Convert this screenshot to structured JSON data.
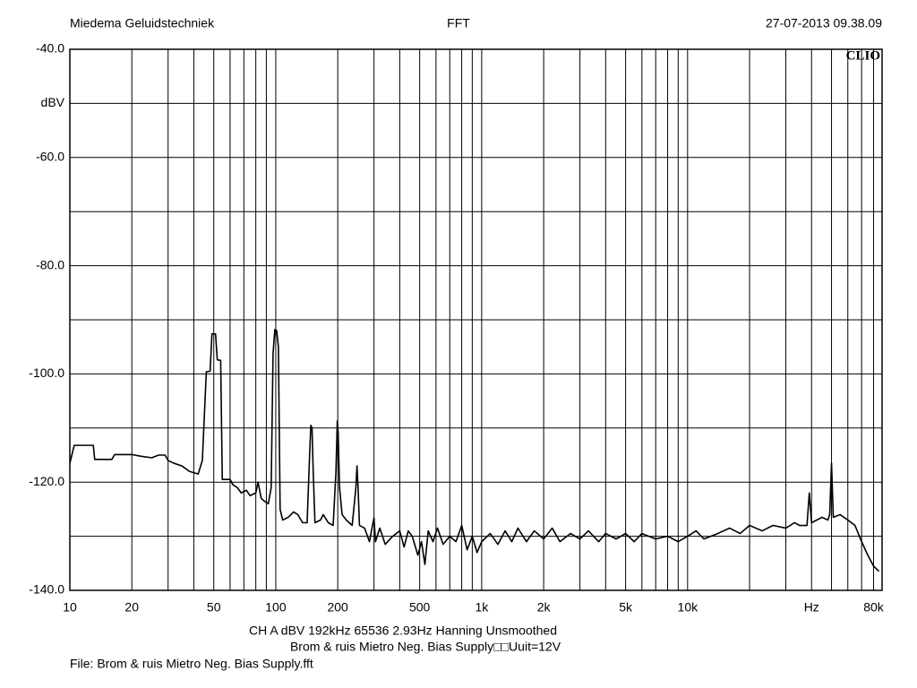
{
  "chart_data": {
    "type": "line",
    "header_left": "Miedema Geluidstechniek",
    "title": "FFT",
    "header_right": "27-07-2013 09.38.09",
    "logo": "CLIO",
    "settings_line": "CH A   dBV   192kHz   65536   2.93Hz   Hanning   Unsmoothed",
    "subtitle": "Brom & ruis Mietro Neg. Bias Supply□□Uuit=12V",
    "file_line": "File: Brom & ruis Mietro Neg. Bias Supply.fft",
    "xscale": "log",
    "xlim": [
      10,
      88000
    ],
    "ylim": [
      -140,
      -40
    ],
    "yticks": [
      {
        "value": -40,
        "label": "-40.0"
      },
      {
        "value": -50,
        "label": "dBV"
      },
      {
        "value": -60,
        "label": "-60.0"
      },
      {
        "value": -80,
        "label": "-80.0"
      },
      {
        "value": -100,
        "label": "-100.0"
      },
      {
        "value": -120,
        "label": "-120.0"
      },
      {
        "value": -140,
        "label": "-140.0"
      }
    ],
    "ygrid": [
      -40,
      -50,
      -60,
      -70,
      -80,
      -90,
      -100,
      -110,
      -120,
      -130,
      -140
    ],
    "xticks": [
      10,
      20,
      50,
      100,
      200,
      500,
      {
        "value": 1000,
        "label": "1k"
      },
      {
        "value": 2000,
        "label": "2k"
      },
      {
        "value": 5000,
        "label": "5k"
      },
      {
        "value": 10000,
        "label": "10k"
      },
      {
        "value": 40000,
        "label": "Hz"
      },
      {
        "value": 80000,
        "label": "80k"
      }
    ],
    "xgrid": [
      10,
      20,
      30,
      40,
      50,
      60,
      70,
      80,
      90,
      100,
      200,
      300,
      400,
      500,
      600,
      700,
      800,
      900,
      1000,
      2000,
      3000,
      4000,
      5000,
      6000,
      7000,
      8000,
      9000,
      10000,
      20000,
      30000,
      40000,
      50000,
      60000,
      70000,
      80000
    ],
    "color": "#000000",
    "x": [
      10,
      10.5,
      13,
      13.2,
      16,
      16.5,
      20,
      22,
      25,
      27,
      29,
      30,
      32,
      35,
      38,
      42,
      44,
      46,
      48,
      49,
      51,
      52,
      54,
      55,
      60,
      62,
      65,
      68,
      72,
      75,
      80,
      82,
      85,
      88,
      92,
      95,
      97,
      99,
      101,
      103,
      105,
      108,
      115,
      122,
      128,
      135,
      142,
      146,
      148,
      150,
      152,
      155,
      165,
      170,
      180,
      190,
      196,
      199,
      201,
      204,
      210,
      220,
      235,
      245,
      248,
      251,
      255,
      270,
      285,
      295,
      300,
      305,
      320,
      340,
      370,
      400,
      420,
      440,
      460,
      490,
      510,
      530,
      550,
      580,
      610,
      650,
      700,
      750,
      800,
      850,
      900,
      950,
      1000,
      1100,
      1200,
      1300,
      1400,
      1500,
      1650,
      1800,
      2000,
      2200,
      2400,
      2700,
      3000,
      3300,
      3700,
      4000,
      4500,
      5000,
      5500,
      6000,
      7000,
      8000,
      9000,
      10000,
      11000,
      12000,
      14000,
      16000,
      18000,
      20000,
      23000,
      26000,
      30000,
      33000,
      35000,
      38000,
      39000,
      40000,
      45000,
      48000,
      49000,
      50000,
      51000,
      55000,
      60000,
      65000,
      70000,
      75000,
      80000,
      85000
    ],
    "values": [
      -116.5,
      -113.2,
      -113.2,
      -115.8,
      -115.8,
      -114.9,
      -114.9,
      -115.2,
      -115.5,
      -115,
      -115,
      -116,
      -116.5,
      -117,
      -118,
      -118.5,
      -116,
      -99.6,
      -99.5,
      -92.6,
      -92.6,
      -97.4,
      -97.5,
      -119.5,
      -119.5,
      -120.5,
      -121,
      -122,
      -121.5,
      -122.5,
      -122,
      -120,
      -123,
      -123.5,
      -124,
      -121,
      -96.3,
      -91.8,
      -92,
      -95,
      -125,
      -127,
      -126.5,
      -125.5,
      -126,
      -127.5,
      -127.5,
      -115,
      -109.5,
      -110,
      -118,
      -127.5,
      -127,
      -126,
      -127.5,
      -128,
      -118,
      -108.7,
      -111,
      -121,
      -126,
      -127,
      -128,
      -121,
      -117,
      -121,
      -128,
      -128.5,
      -131,
      -128,
      -126.6,
      -131,
      -128.5,
      -131.5,
      -130,
      -129,
      -132,
      -129,
      -130,
      -133.5,
      -131,
      -135.2,
      -129,
      -131,
      -128.5,
      -131.5,
      -130,
      -131,
      -128,
      -132.5,
      -130,
      -133,
      -131,
      -129.5,
      -131.5,
      -129,
      -131,
      -128.5,
      -131,
      -129,
      -130.5,
      -128.5,
      -131,
      -129.5,
      -130.5,
      -129,
      -131,
      -129.5,
      -130.5,
      -129.5,
      -131,
      -129.5,
      -130.5,
      -130,
      -131,
      -130,
      -129,
      -130.5,
      -129.5,
      -128.5,
      -129.5,
      -128,
      -129,
      -128,
      -128.5,
      -127.5,
      -128,
      -128,
      -122,
      -127.5,
      -126.5,
      -127,
      -126,
      -116.5,
      -126.5,
      -126,
      -127,
      -128,
      -131,
      -133.5,
      -135.5,
      -136.5
    ]
  }
}
